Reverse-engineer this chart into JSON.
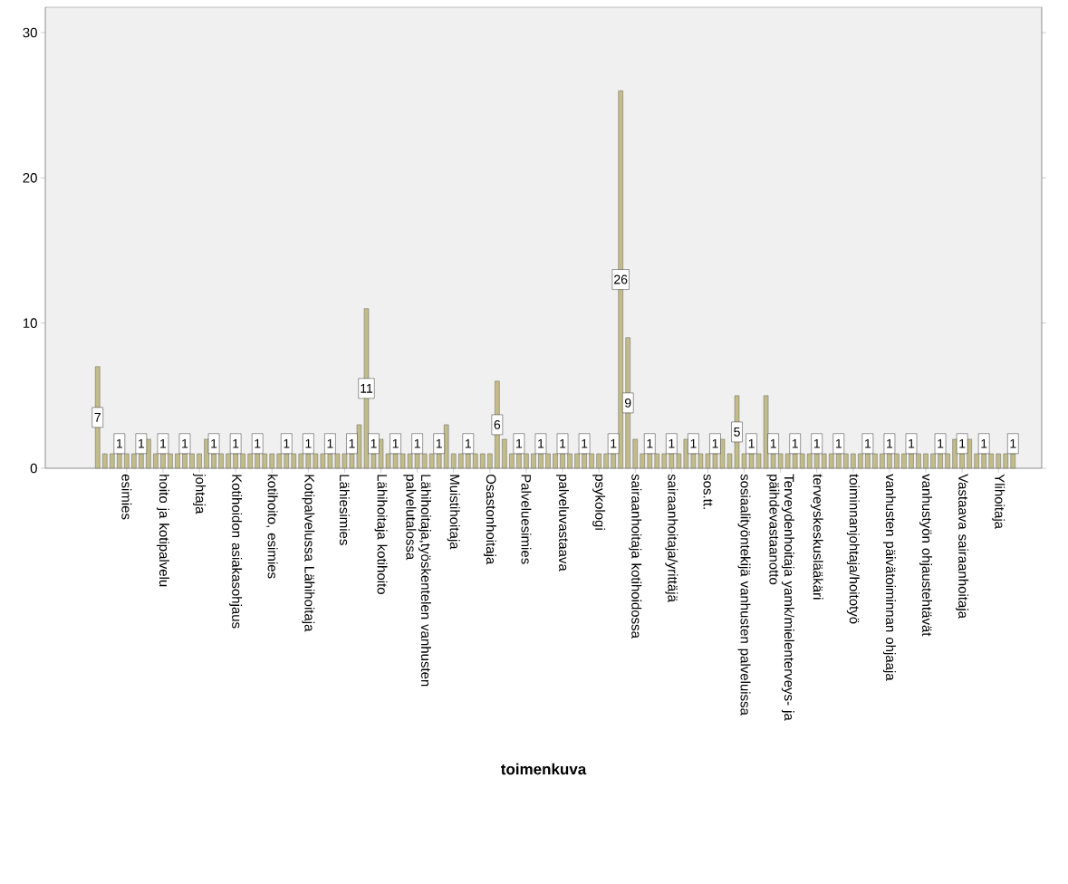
{
  "chart_data": {
    "type": "bar",
    "xlabel": "toimenkuva",
    "categories": [
      null,
      null,
      null,
      null,
      "esimies",
      null,
      null,
      null,
      null,
      "hoito ja kotipalvelu",
      null,
      null,
      null,
      null,
      "johtaja",
      null,
      null,
      null,
      null,
      "Kotihoidon asiakasohjaus",
      null,
      null,
      null,
      null,
      "kotihoito, esimies",
      null,
      null,
      null,
      null,
      "Kotipalvelussa Lähihoitaja",
      null,
      null,
      null,
      null,
      "Lähiesimies",
      null,
      null,
      null,
      null,
      "Lähihoitaja kotihoito",
      null,
      null,
      null,
      null,
      "Lähihoitaja,työskentelen vanhusten palvelutalossa",
      null,
      null,
      null,
      null,
      "Muistihoitaja",
      null,
      null,
      null,
      null,
      "Osastonhoitaja",
      null,
      null,
      null,
      null,
      "Palveluesimies",
      null,
      null,
      null,
      null,
      "palveluvastaava",
      null,
      null,
      null,
      null,
      "psykologi",
      null,
      null,
      null,
      null,
      "sairaanhoitaja kotihoidossa",
      null,
      null,
      null,
      null,
      "sairaanhoitaja/yrittäjä",
      null,
      null,
      null,
      null,
      "sos.tt.",
      null,
      null,
      null,
      null,
      "sosiaalityöntekijä vanhusten palveluissa",
      null,
      null,
      null,
      null,
      "Terveydenhoitaja yamk/mielenterveys- ja päihdevastaanotto",
      null,
      null,
      null,
      null,
      "terveyskeskuslääkäri",
      null,
      null,
      null,
      null,
      "toiminnanjohtaja/hoitotyö",
      null,
      null,
      null,
      null,
      "vanhusten päivätoiminnan ohjaaja",
      null,
      null,
      null,
      null,
      "vanhustyön ohjaustehtävät",
      null,
      null,
      null,
      null,
      "Vastaava sairaanhoitaja",
      null,
      null,
      null,
      null,
      "Ylihoitaja",
      null,
      null
    ],
    "values": [
      7,
      1,
      1,
      1,
      1,
      1,
      1,
      2,
      1,
      1,
      1,
      1,
      1,
      1,
      1,
      2,
      1,
      1,
      1,
      1,
      1,
      1,
      1,
      1,
      1,
      1,
      1,
      1,
      1,
      1,
      1,
      1,
      1,
      1,
      1,
      1,
      3,
      11,
      1,
      2,
      1,
      1,
      1,
      1,
      1,
      1,
      1,
      1,
      3,
      1,
      1,
      1,
      1,
      1,
      1,
      6,
      2,
      1,
      1,
      1,
      1,
      1,
      1,
      1,
      1,
      1,
      1,
      1,
      1,
      1,
      1,
      1,
      26,
      9,
      2,
      1,
      1,
      1,
      1,
      1,
      1,
      2,
      1,
      1,
      1,
      1,
      2,
      1,
      5,
      1,
      1,
      1,
      5,
      1,
      1,
      1,
      1,
      1,
      1,
      1,
      1,
      1,
      1,
      1,
      1,
      1,
      1,
      1,
      1,
      1,
      1,
      1,
      1,
      1,
      1,
      1,
      1,
      1,
      2,
      1,
      2,
      1,
      1,
      1,
      1,
      1,
      1
    ],
    "value_labels": [
      "7",
      null,
      null,
      "1",
      null,
      null,
      "1",
      null,
      null,
      "1",
      null,
      null,
      "1",
      null,
      null,
      null,
      "1",
      null,
      null,
      "1",
      null,
      null,
      "1",
      null,
      null,
      null,
      "1",
      null,
      null,
      "1",
      null,
      null,
      "1",
      null,
      null,
      "1",
      null,
      "11",
      "1",
      null,
      null,
      "1",
      null,
      null,
      "1",
      null,
      null,
      "1",
      null,
      null,
      null,
      "1",
      null,
      null,
      null,
      "6",
      null,
      null,
      "1",
      null,
      null,
      "1",
      null,
      null,
      "1",
      null,
      null,
      "1",
      null,
      null,
      null,
      "1",
      "26",
      "9",
      null,
      null,
      "1",
      null,
      null,
      "1",
      null,
      null,
      "1",
      null,
      null,
      "1",
      null,
      null,
      "5",
      null,
      "1",
      null,
      null,
      "1",
      null,
      null,
      "1",
      null,
      null,
      "1",
      null,
      null,
      "1",
      null,
      null,
      null,
      "1",
      null,
      null,
      "1",
      null,
      null,
      "1",
      null,
      null,
      null,
      "1",
      null,
      null,
      "1",
      null,
      null,
      "1",
      null,
      null,
      null,
      "1"
    ],
    "color": "#c2bc8a",
    "ylim": [
      0,
      31.75
    ],
    "yticks": [
      0,
      10,
      20,
      30
    ]
  }
}
